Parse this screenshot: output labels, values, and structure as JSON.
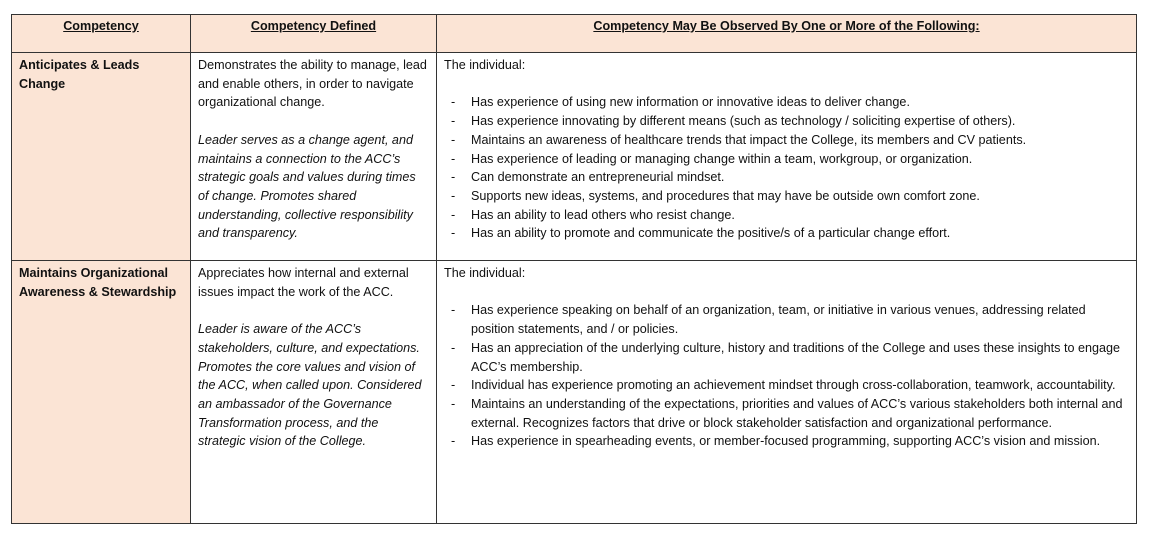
{
  "headers": [
    "Competency",
    "Competency Defined",
    "Competency May Be Observed By One or More of the Following:"
  ],
  "rows": [
    {
      "competency": "Anticipates & Leads Change",
      "defined": "Demonstrates the ability to manage, lead and enable others, in order to navigate organizational change.",
      "defined_italic": "Leader serves as a change agent, and maintains a connection to the ACC’s strategic goals and values during times of change. Promotes shared understanding, collective responsibility and transparency.",
      "intro": "The individual:",
      "items": [
        "Has experience of using new information or innovative ideas to deliver change.",
        "Has experience innovating by different means (such as technology / soliciting expertise of others).",
        "Maintains an awareness of healthcare trends that impact the College, its members and CV patients.",
        "Has experience of leading or managing change within a team, workgroup, or organization.",
        "Can demonstrate an entrepreneurial mindset.",
        "Supports new ideas, systems, and procedures that may have be outside own comfort zone.",
        "Has an ability to lead others who resist change.",
        "Has an ability to promote and communicate the positive/s of a particular change effort."
      ]
    },
    {
      "competency": "Maintains Organizational Awareness & Stewardship",
      "defined": "Appreciates how internal and external issues impact the work of the ACC.",
      "defined_italic": "Leader is aware of the ACC’s stakeholders, culture, and expectations.  Promotes the core values and vision of the ACC, when called upon. Considered an ambassador of the Governance Transformation process, and the strategic vision of the College.",
      "intro": "The individual:",
      "items": [
        "Has experience speaking on behalf of an organization, team, or initiative in various venues, addressing related position statements, and / or policies.",
        "Has an appreciation of the underlying culture, history and traditions of the College and uses these insights to engage ACC’s membership.",
        "Individual has experience promoting an achievement mindset through cross-collaboration, teamwork, accountability.",
        "Maintains an understanding of the expectations, priorities and values of ACC’s various stakeholders both internal and external. Recognizes factors that drive or block stakeholder satisfaction and organizational performance.",
        "Has experience in spearheading events, or member-focused programming, supporting ACC’s vision and mission."
      ]
    }
  ]
}
